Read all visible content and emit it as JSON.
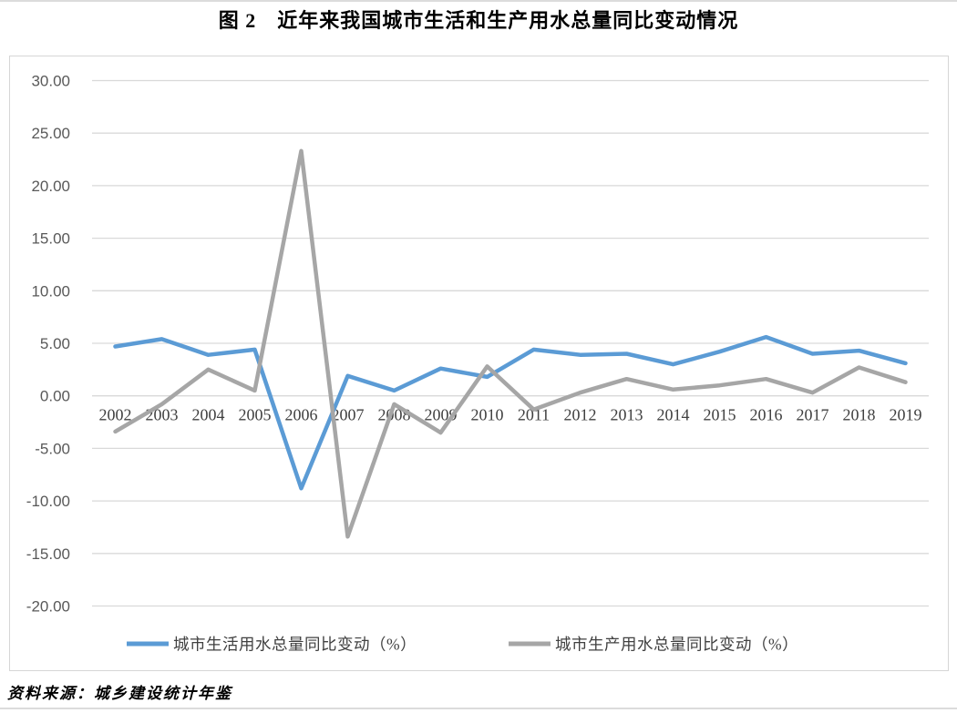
{
  "page": {
    "title": "图 2　近年来我国城市生活和生产用水总量同比变动情况",
    "source_note": "资料来源：城乡建设统计年鉴"
  },
  "colors": {
    "series_life": "#5B9BD5",
    "series_prod": "#A6A6A6",
    "gridline": "#D9D9D9",
    "chart_border": "#D6D6D6",
    "ytick_text": "#595959",
    "xtick_text": "#404040",
    "legend_text": "#404040",
    "page_rule": "#DCDCDC"
  },
  "chart_data": {
    "type": "line",
    "title": "图 2　近年来我国城市生活和生产用水总量同比变动情况",
    "categories": [
      "2002",
      "2003",
      "2004",
      "2005",
      "2006",
      "2007",
      "2008",
      "2009",
      "2010",
      "2011",
      "2012",
      "2013",
      "2014",
      "2015",
      "2016",
      "2017",
      "2018",
      "2019"
    ],
    "series": [
      {
        "name": "城市生活用水总量同比变动（%）",
        "color": "#5B9BD5",
        "values": [
          4.7,
          5.4,
          3.9,
          4.4,
          -8.8,
          1.9,
          0.5,
          2.6,
          1.8,
          4.4,
          3.9,
          4.0,
          3.0,
          4.2,
          5.6,
          4.0,
          4.3,
          3.1
        ]
      },
      {
        "name": "城市生产用水总量同比变动（%）",
        "color": "#A6A6A6",
        "values": [
          -3.4,
          -0.8,
          2.5,
          0.5,
          23.3,
          -13.4,
          -0.8,
          -3.5,
          2.8,
          -1.3,
          0.3,
          1.6,
          0.6,
          1.0,
          1.6,
          0.3,
          2.7,
          1.3
        ]
      }
    ],
    "xlabel": "",
    "ylabel": "",
    "ylim": [
      -20,
      30
    ],
    "ytick_step": 5,
    "ytick_labels": [
      "30.00",
      "25.00",
      "20.00",
      "15.00",
      "10.00",
      "5.00",
      "0.00",
      "-5.00",
      "-10.00",
      "-15.00",
      "-20.00"
    ],
    "grid": true,
    "legend_position": "bottom"
  }
}
